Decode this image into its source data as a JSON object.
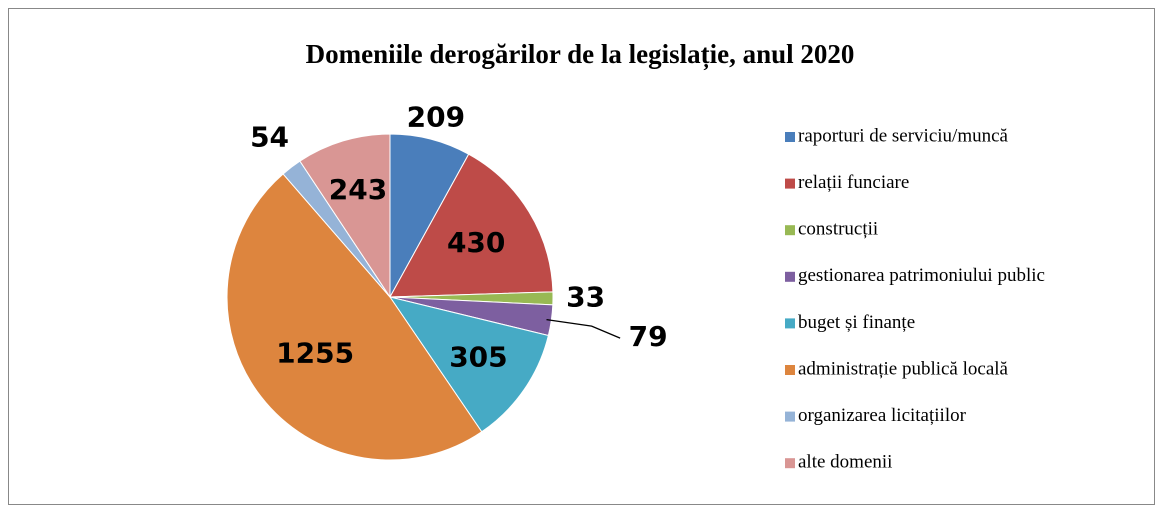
{
  "chart_data": {
    "type": "pie",
    "title": "Domeniile derogărilor de la legislație, anul 2020",
    "categories": [
      "raporturi de serviciu/muncă",
      "relații funciare",
      "construcții",
      "gestionarea patrimoniului public",
      "buget și finanțe",
      "administrație publică locală",
      "organizarea licitațiilor",
      "alte domenii"
    ],
    "values": [
      209,
      430,
      33,
      79,
      305,
      1255,
      54,
      243
    ],
    "colors": [
      "#4a7ebb",
      "#be4b48",
      "#98b954",
      "#7d5fa0",
      "#46aac5",
      "#dd853e",
      "#95b3d7",
      "#d99694"
    ],
    "legend": "right"
  }
}
